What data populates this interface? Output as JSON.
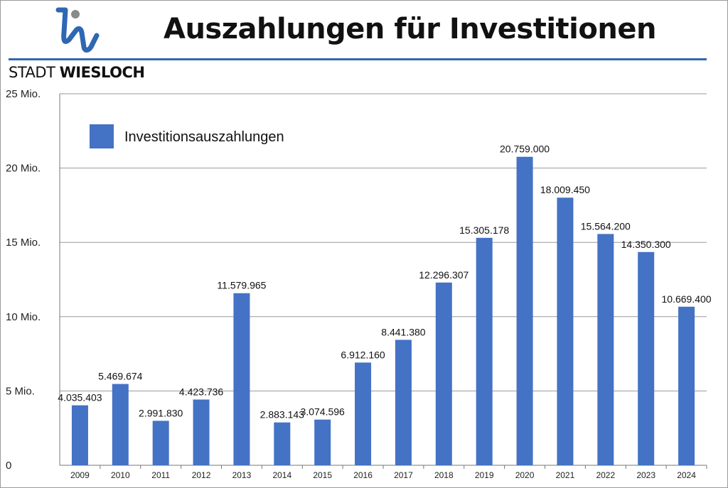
{
  "header": {
    "title": "Auszahlungen für Investitionen",
    "brand_light": "STADT",
    "brand_bold": "WIESLOCH",
    "accent_color": "#2f67b3",
    "logo_grey": "#8a8a8a"
  },
  "chart_data": {
    "type": "bar",
    "title": "Auszahlungen für Investitionen",
    "xlabel": "",
    "ylabel": "",
    "categories": [
      "2009",
      "2010",
      "2011",
      "2012",
      "2013",
      "2014",
      "2015",
      "2016",
      "2017",
      "2018",
      "2019",
      "2020",
      "2021",
      "2022",
      "2023",
      "2024"
    ],
    "series": [
      {
        "name": "Investitionsauszahlungen",
        "color": "#4472c4",
        "values": [
          4035403,
          5469674,
          2991830,
          4423736,
          11579965,
          2883143,
          3074596,
          6912160,
          8441380,
          12296307,
          15305178,
          20759000,
          18009450,
          15564200,
          14350300,
          10669400
        ],
        "labels": [
          "4.035.403",
          "5.469.674",
          "2.991.830",
          "4.423.736",
          "11.579.965",
          "2.883.143",
          "3.074.596",
          "6.912.160",
          "8.441.380",
          "12.296.307",
          "15.305.178",
          "20.759.000",
          "18.009.450",
          "15.564.200",
          "14.350.300",
          "10.669.400"
        ]
      }
    ],
    "ylim": [
      0,
      25000000
    ],
    "yticks": [
      0,
      5000000,
      10000000,
      15000000,
      20000000,
      25000000
    ],
    "ytick_labels": [
      "0",
      "5 Mio.",
      "10 Mio.",
      "15 Mio.",
      "20 Mio.",
      "25 Mio."
    ],
    "grid": true,
    "legend_position": "top-left"
  }
}
